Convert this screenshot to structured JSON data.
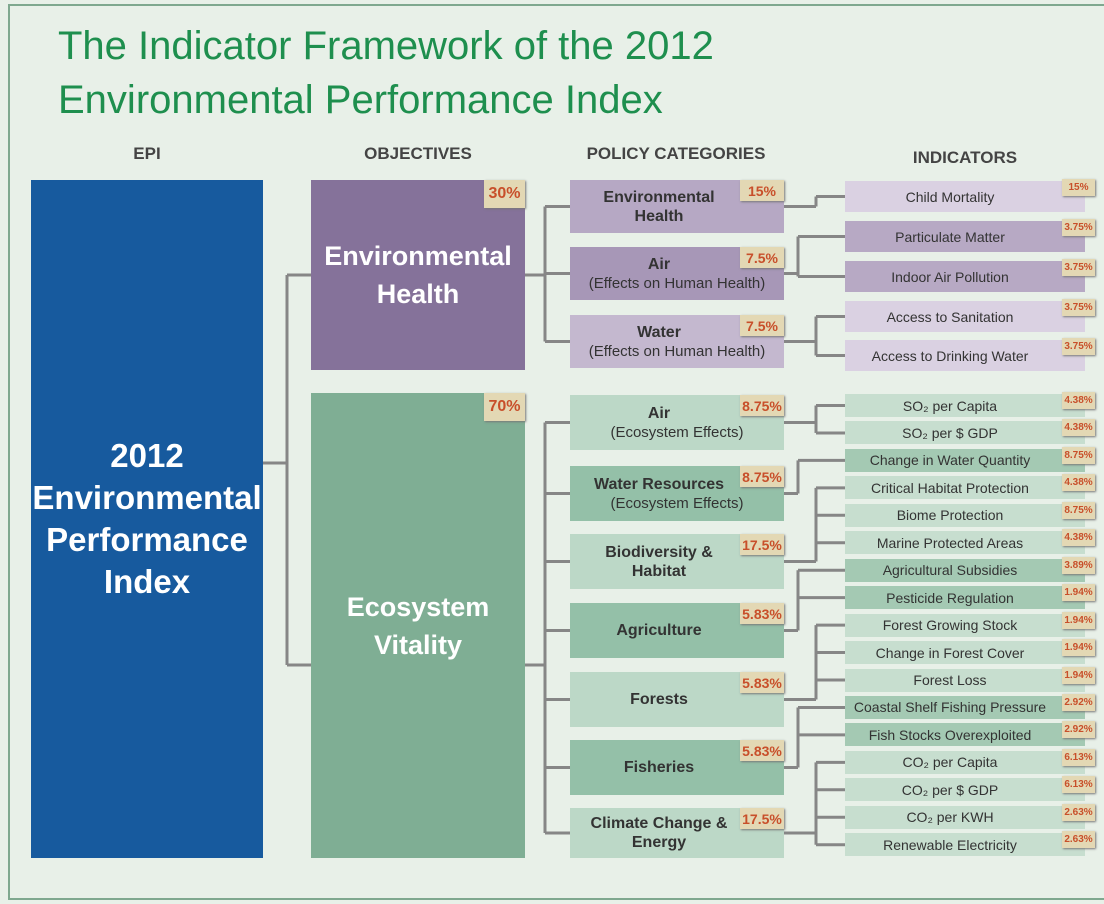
{
  "title": [
    "The Indicator Framework of the 2012",
    "Environmental Performance Index"
  ],
  "headers": [
    "EPI",
    "OBJECTIVES",
    "POLICY CATEGORIES",
    "INDICATORS"
  ],
  "epi": "2012 Environmental Performance Index",
  "objectives": [
    {
      "name": "Environmental Health",
      "weight": "30%",
      "categories": [
        {
          "name": "Environmental Health",
          "weight": "15%",
          "indicators": [
            {
              "name": "Child Mortality",
              "weight": "15%"
            }
          ]
        },
        {
          "name": "Air",
          "sub": "(Effects on Human Health)",
          "weight": "7.5%",
          "indicators": [
            {
              "name": "Particulate Matter",
              "weight": "3.75%"
            },
            {
              "name": "Indoor Air Pollution",
              "weight": "3.75%"
            }
          ]
        },
        {
          "name": "Water",
          "sub": "(Effects on Human Health)",
          "weight": "7.5%",
          "indicators": [
            {
              "name": "Access to Sanitation",
              "weight": "3.75%"
            },
            {
              "name": "Access to Drinking Water",
              "weight": "3.75%"
            }
          ]
        }
      ]
    },
    {
      "name": "Ecosystem Vitality",
      "weight": "70%",
      "categories": [
        {
          "name": "Air",
          "sub": "(Ecosystem Effects)",
          "weight": "8.75%",
          "indicators": [
            {
              "name": "SO₂ per Capita",
              "weight": "4.38%"
            },
            {
              "name": "SO₂ per $ GDP",
              "weight": "4.38%"
            }
          ]
        },
        {
          "name": "Water Resources",
          "sub": "(Ecosystem Effects)",
          "weight": "8.75%",
          "indicators": [
            {
              "name": "Change in Water Quantity",
              "weight": "8.75%"
            }
          ]
        },
        {
          "name": "Biodiversity & Habitat",
          "weight": "17.5%",
          "indicators": [
            {
              "name": "Critical Habitat Protection",
              "weight": "4.38%"
            },
            {
              "name": "Biome Protection",
              "weight": "8.75%"
            },
            {
              "name": "Marine Protected Areas",
              "weight": "4.38%"
            }
          ]
        },
        {
          "name": "Agriculture",
          "weight": "5.83%",
          "indicators": [
            {
              "name": "Agricultural Subsidies",
              "weight": "3.89%"
            },
            {
              "name": "Pesticide Regulation",
              "weight": "1.94%"
            }
          ]
        },
        {
          "name": "Forests",
          "weight": "5.83%",
          "indicators": [
            {
              "name": "Forest Growing Stock",
              "weight": "1.94%"
            },
            {
              "name": "Change in Forest Cover",
              "weight": "1.94%"
            },
            {
              "name": "Forest Loss",
              "weight": "1.94%"
            }
          ]
        },
        {
          "name": "Fisheries",
          "weight": "5.83%",
          "indicators": [
            {
              "name": "Coastal Shelf Fishing Pressure",
              "weight": "2.92%"
            },
            {
              "name": "Fish Stocks Overexploited",
              "weight": "2.92%"
            }
          ]
        },
        {
          "name": "Climate Change & Energy",
          "weight": "17.5%",
          "indicators": [
            {
              "name": "CO₂ per Capita",
              "weight": "6.13%"
            },
            {
              "name": "CO₂ per $ GDP",
              "weight": "6.13%"
            },
            {
              "name": "CO₂ per KWH",
              "weight": "2.63%"
            },
            {
              "name": "Renewable Electricity",
              "weight": "2.63%"
            }
          ]
        }
      ]
    }
  ]
}
